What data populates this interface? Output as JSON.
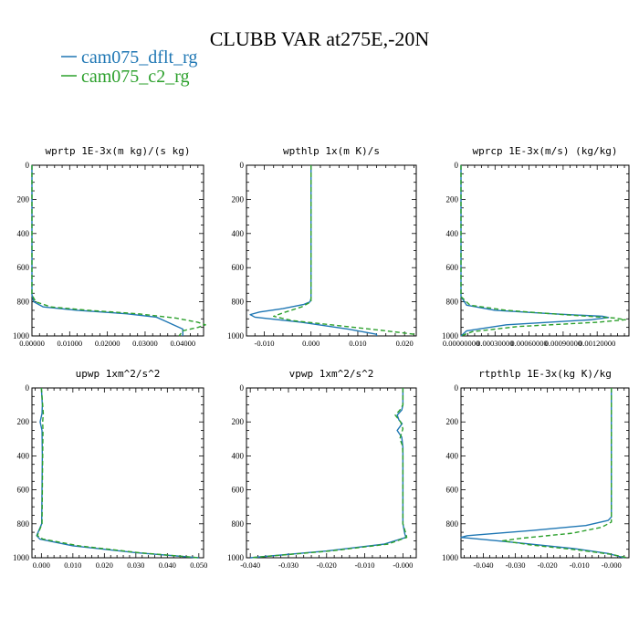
{
  "title": "CLUBB VAR at275E,-20N",
  "legend": [
    {
      "name": "cam075_dflt_rg",
      "color": "#1f77b4",
      "dash": "solid"
    },
    {
      "name": "cam075_c2_rg",
      "color": "#2ca02c",
      "dash": "dashed"
    }
  ],
  "chart_data": [
    {
      "type": "line",
      "title": "wprtp  1E-3x(m kg)/(s kg)",
      "xlim": [
        0,
        0.0455
      ],
      "ylim": [
        1000,
        0
      ],
      "y_inverted": true,
      "xticks": [
        0,
        0.01,
        0.02,
        0.03,
        0.04
      ],
      "xtick_labels": [
        "0.00000",
        "0.01000",
        "0.02000",
        "0.03000",
        "0.04000"
      ],
      "yticks": [
        0,
        200,
        400,
        600,
        800,
        1000
      ],
      "series": [
        {
          "name": "cam075_dflt_rg",
          "points": [
            [
              0,
              0
            ],
            [
              0,
              760
            ],
            [
              0.0005,
              800
            ],
            [
              0.003,
              830
            ],
            [
              0.012,
              850
            ],
            [
              0.025,
              870
            ],
            [
              0.033,
              890
            ],
            [
              0.035,
              910
            ],
            [
              0.038,
              940
            ],
            [
              0.04,
              960
            ],
            [
              0.04,
              1000
            ]
          ]
        },
        {
          "name": "cam075_c2_rg",
          "points": [
            [
              0,
              0
            ],
            [
              0,
              760
            ],
            [
              0.001,
              800
            ],
            [
              0.005,
              830
            ],
            [
              0.015,
              850
            ],
            [
              0.028,
              870
            ],
            [
              0.038,
              895
            ],
            [
              0.044,
              920
            ],
            [
              0.046,
              935
            ],
            [
              0.044,
              950
            ],
            [
              0.04,
              970
            ],
            [
              0.039,
              1000
            ]
          ]
        }
      ]
    },
    {
      "type": "line",
      "title": "wpthlp  1x(m K)/s",
      "xlim": [
        -0.0138,
        0.0225
      ],
      "ylim": [
        1000,
        0
      ],
      "y_inverted": true,
      "xticks": [
        -0.01,
        0,
        0.01,
        0.02
      ],
      "xtick_labels": [
        "-0.010",
        "0.000",
        "0.010",
        "0.020"
      ],
      "yticks": [
        0,
        200,
        400,
        600,
        800,
        1000
      ],
      "series": [
        {
          "name": "cam075_dflt_rg",
          "points": [
            [
              0,
              0
            ],
            [
              0,
              780
            ],
            [
              -0.0002,
              800
            ],
            [
              -0.0015,
              815
            ],
            [
              -0.006,
              840
            ],
            [
              -0.011,
              860
            ],
            [
              -0.013,
              875
            ],
            [
              -0.012,
              890
            ],
            [
              -0.002,
              920
            ],
            [
              0.008,
              960
            ],
            [
              0.014,
              990
            ],
            [
              0.014,
              1000
            ]
          ]
        },
        {
          "name": "cam075_c2_rg",
          "points": [
            [
              0,
              0
            ],
            [
              0,
              800
            ],
            [
              -0.002,
              830
            ],
            [
              -0.006,
              865
            ],
            [
              -0.008,
              885
            ],
            [
              -0.004,
              910
            ],
            [
              0.006,
              940
            ],
            [
              0.016,
              970
            ],
            [
              0.022,
              990
            ],
            [
              0.022,
              1000
            ]
          ]
        }
      ]
    },
    {
      "type": "line",
      "title": "wprcp  1E-3x(m/s) (kg/kg)",
      "xlim": [
        0,
        0.00148
      ],
      "ylim": [
        1000,
        0
      ],
      "y_inverted": true,
      "xticks": [
        0,
        0.0003,
        0.0006,
        0.0009,
        0.0012
      ],
      "xtick_labels": [
        "0.00000000",
        "0.00030000",
        "0.00060000",
        "0.00090000",
        "0.00120000"
      ],
      "yticks": [
        0,
        200,
        400,
        600,
        800,
        1000
      ],
      "series": [
        {
          "name": "cam075_dflt_rg",
          "points": [
            [
              0,
              0
            ],
            [
              0,
              770
            ],
            [
              5e-05,
              820
            ],
            [
              0.0003,
              850
            ],
            [
              0.0008,
              870
            ],
            [
              0.00125,
              885
            ],
            [
              0.0013,
              892
            ],
            [
              0.00115,
              905
            ],
            [
              0.0004,
              935
            ],
            [
              5e-05,
              970
            ],
            [
              0,
              1000
            ]
          ]
        },
        {
          "name": "cam075_c2_rg",
          "points": [
            [
              0,
              0
            ],
            [
              0,
              770
            ],
            [
              8e-05,
              820
            ],
            [
              0.0004,
              850
            ],
            [
              0.0009,
              875
            ],
            [
              0.00135,
              895
            ],
            [
              0.00145,
              905
            ],
            [
              0.0012,
              920
            ],
            [
              0.0005,
              945
            ],
            [
              0.0001,
              975
            ],
            [
              0,
              1000
            ]
          ]
        }
      ]
    },
    {
      "type": "line",
      "title": "upwp  1xm^2/s^2",
      "xlim": [
        -0.003,
        0.0515
      ],
      "ylim": [
        1000,
        0
      ],
      "y_inverted": true,
      "xticks": [
        0,
        0.01,
        0.02,
        0.03,
        0.04,
        0.05
      ],
      "xtick_labels": [
        "0.000",
        "0.010",
        "0.020",
        "0.030",
        "0.040",
        "0.050"
      ],
      "yticks": [
        0,
        200,
        400,
        600,
        800,
        1000
      ],
      "series": [
        {
          "name": "cam075_dflt_rg",
          "points": [
            [
              0,
              0
            ],
            [
              0.0003,
              100
            ],
            [
              0.0002,
              150
            ],
            [
              -0.0004,
              200
            ],
            [
              0.0002,
              250
            ],
            [
              0.0003,
              400
            ],
            [
              0.0002,
              600
            ],
            [
              0.0001,
              800
            ],
            [
              -0.0015,
              870
            ],
            [
              -0.0005,
              890
            ],
            [
              0.01,
              930
            ],
            [
              0.03,
              970
            ],
            [
              0.05,
              1000
            ]
          ]
        },
        {
          "name": "cam075_c2_rg",
          "points": [
            [
              0,
              0
            ],
            [
              0.0004,
              100
            ],
            [
              0.0006,
              150
            ],
            [
              0.0004,
              200
            ],
            [
              0.0005,
              250
            ],
            [
              0.0004,
              400
            ],
            [
              0.0003,
              600
            ],
            [
              0.0002,
              800
            ],
            [
              -0.0013,
              870
            ],
            [
              0.0005,
              890
            ],
            [
              0.012,
              930
            ],
            [
              0.031,
              970
            ],
            [
              0.05,
              1000
            ]
          ]
        }
      ]
    },
    {
      "type": "line",
      "title": "vpwp  1xm^2/s^2",
      "xlim": [
        -0.041,
        0.0035
      ],
      "ylim": [
        1000,
        0
      ],
      "y_inverted": true,
      "xticks": [
        -0.04,
        -0.03,
        -0.02,
        -0.01,
        0
      ],
      "xtick_labels": [
        "-0.040",
        "-0.030",
        "-0.020",
        "-0.010",
        "-0.000"
      ],
      "yticks": [
        0,
        200,
        400,
        600,
        800,
        1000
      ],
      "series": [
        {
          "name": "cam075_dflt_rg",
          "points": [
            [
              0,
              0
            ],
            [
              0,
              100
            ],
            [
              -0.0003,
              130
            ],
            [
              -0.0015,
              160
            ],
            [
              -0.001,
              190
            ],
            [
              -0.0002,
              210
            ],
            [
              -0.0015,
              250
            ],
            [
              -0.0003,
              290
            ],
            [
              0,
              350
            ],
            [
              0,
              800
            ],
            [
              0.0005,
              860
            ],
            [
              0.0008,
              880
            ],
            [
              -0.005,
              920
            ],
            [
              -0.02,
              960
            ],
            [
              -0.04,
              1000
            ]
          ]
        },
        {
          "name": "cam075_c2_rg",
          "points": [
            [
              0,
              0
            ],
            [
              0,
              100
            ],
            [
              -0.0008,
              130
            ],
            [
              -0.002,
              160
            ],
            [
              -0.0006,
              200
            ],
            [
              0,
              240
            ],
            [
              -0.0008,
              300
            ],
            [
              -0.0001,
              340
            ],
            [
              0,
              400
            ],
            [
              0,
              800
            ],
            [
              0.0008,
              860
            ],
            [
              0.001,
              880
            ],
            [
              -0.004,
              920
            ],
            [
              -0.019,
              960
            ],
            [
              -0.04,
              1000
            ]
          ]
        }
      ]
    },
    {
      "type": "line",
      "title": "rtpthlp  1E-3x(kg K)/kg",
      "xlim": [
        -0.047,
        0.0055
      ],
      "ylim": [
        1000,
        0
      ],
      "y_inverted": true,
      "xticks": [
        -0.04,
        -0.03,
        -0.02,
        -0.01,
        0
      ],
      "xtick_labels": [
        "-0.040",
        "-0.030",
        "-0.020",
        "-0.010",
        "-0.000"
      ],
      "yticks": [
        0,
        200,
        400,
        600,
        800,
        1000
      ],
      "series": [
        {
          "name": "cam075_dflt_rg",
          "points": [
            [
              0,
              0
            ],
            [
              0,
              760
            ],
            [
              -0.001,
              780
            ],
            [
              -0.008,
              810
            ],
            [
              -0.025,
              840
            ],
            [
              -0.045,
              870
            ],
            [
              -0.047,
              880
            ],
            [
              -0.03,
              910
            ],
            [
              -0.012,
              945
            ],
            [
              -0.001,
              975
            ],
            [
              0.004,
              1000
            ]
          ]
        },
        {
          "name": "cam075_c2_rg",
          "points": [
            [
              0,
              0
            ],
            [
              0,
              790
            ],
            [
              -0.003,
              820
            ],
            [
              -0.012,
              855
            ],
            [
              -0.028,
              885
            ],
            [
              -0.034,
              900
            ],
            [
              -0.025,
              925
            ],
            [
              -0.01,
              955
            ],
            [
              0,
              980
            ],
            [
              0.005,
              1000
            ]
          ]
        }
      ]
    }
  ]
}
